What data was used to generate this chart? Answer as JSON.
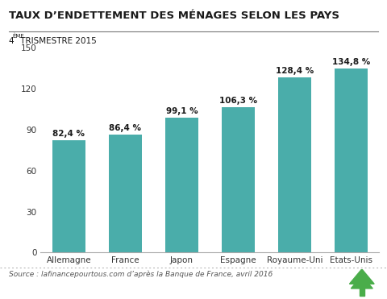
{
  "title": "TAUX D’ENDETTEMENT DES MÉNAGES SELON LES PAYS",
  "subtitle_main": "4",
  "subtitle_sup": "ÈME",
  "subtitle_rest": " TRISMESTRE 2015",
  "categories": [
    "Allemagne",
    "France",
    "Japon",
    "Espagne",
    "Royaume-Uni",
    "Etats-Unis"
  ],
  "values": [
    82.4,
    86.4,
    99.1,
    106.3,
    128.4,
    134.8
  ],
  "labels": [
    "82,4 %",
    "86,4 %",
    "99,1 %",
    "106,3 %",
    "128,4 %",
    "134,8 %"
  ],
  "bar_color": "#4aadaa",
  "ylim": [
    0,
    150
  ],
  "yticks": [
    0,
    30,
    60,
    90,
    120,
    150
  ],
  "source_text": "Source : lafinancepourtous.com d’après la Banque de France, avril 2016",
  "bg_color": "#ffffff",
  "title_color": "#1a1a1a",
  "bar_label_color": "#1a1a1a",
  "axis_label_color": "#333333",
  "title_fontsize": 9.5,
  "subtitle_fontsize": 7.5,
  "bar_label_fontsize": 7.5,
  "xtick_fontsize": 7.5,
  "ytick_fontsize": 7.5,
  "source_fontsize": 6.5
}
